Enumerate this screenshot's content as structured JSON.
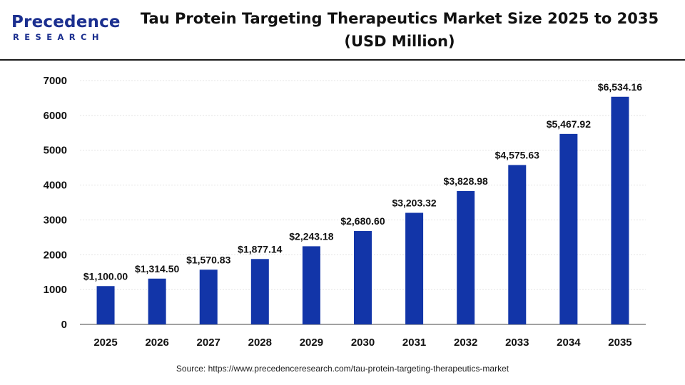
{
  "brand": {
    "name": "Precedence",
    "tagline": "RESEARCH",
    "color": "#1b2f8f"
  },
  "header": {
    "title_line1": "Tau Protein Targeting Therapeutics Market Size 2025 to 2035",
    "title_line2": "(USD Million)"
  },
  "source_text": "Source: https://www.precedenceresearch.com/tau-protein-targeting-therapeutics-market",
  "chart_data": {
    "type": "bar",
    "title": "Tau Protein Targeting Therapeutics Market Size 2025 to 2035 (USD Million)",
    "xlabel": "",
    "ylabel": "",
    "categories": [
      "2025",
      "2026",
      "2027",
      "2028",
      "2029",
      "2030",
      "2031",
      "2032",
      "2033",
      "2034",
      "2035"
    ],
    "values": [
      1100.0,
      1314.5,
      1570.83,
      1877.14,
      2243.18,
      2680.6,
      3203.32,
      3828.98,
      4575.63,
      5467.92,
      6534.16
    ],
    "value_labels": [
      "$1,100.00",
      "$1,314.50",
      "$1,570.83",
      "$1,877.14",
      "$2,243.18",
      "$2,680.60",
      "$3,203.32",
      "$3,828.98",
      "$4,575.63",
      "$5,467.92",
      "$6,534.16"
    ],
    "ylim": [
      0,
      7000
    ],
    "yticks": [
      "0",
      "1000",
      "2000",
      "3000",
      "4000",
      "5000",
      "6000",
      "7000"
    ],
    "grid": true,
    "legend": "none",
    "bar_color": "#1235a8"
  }
}
